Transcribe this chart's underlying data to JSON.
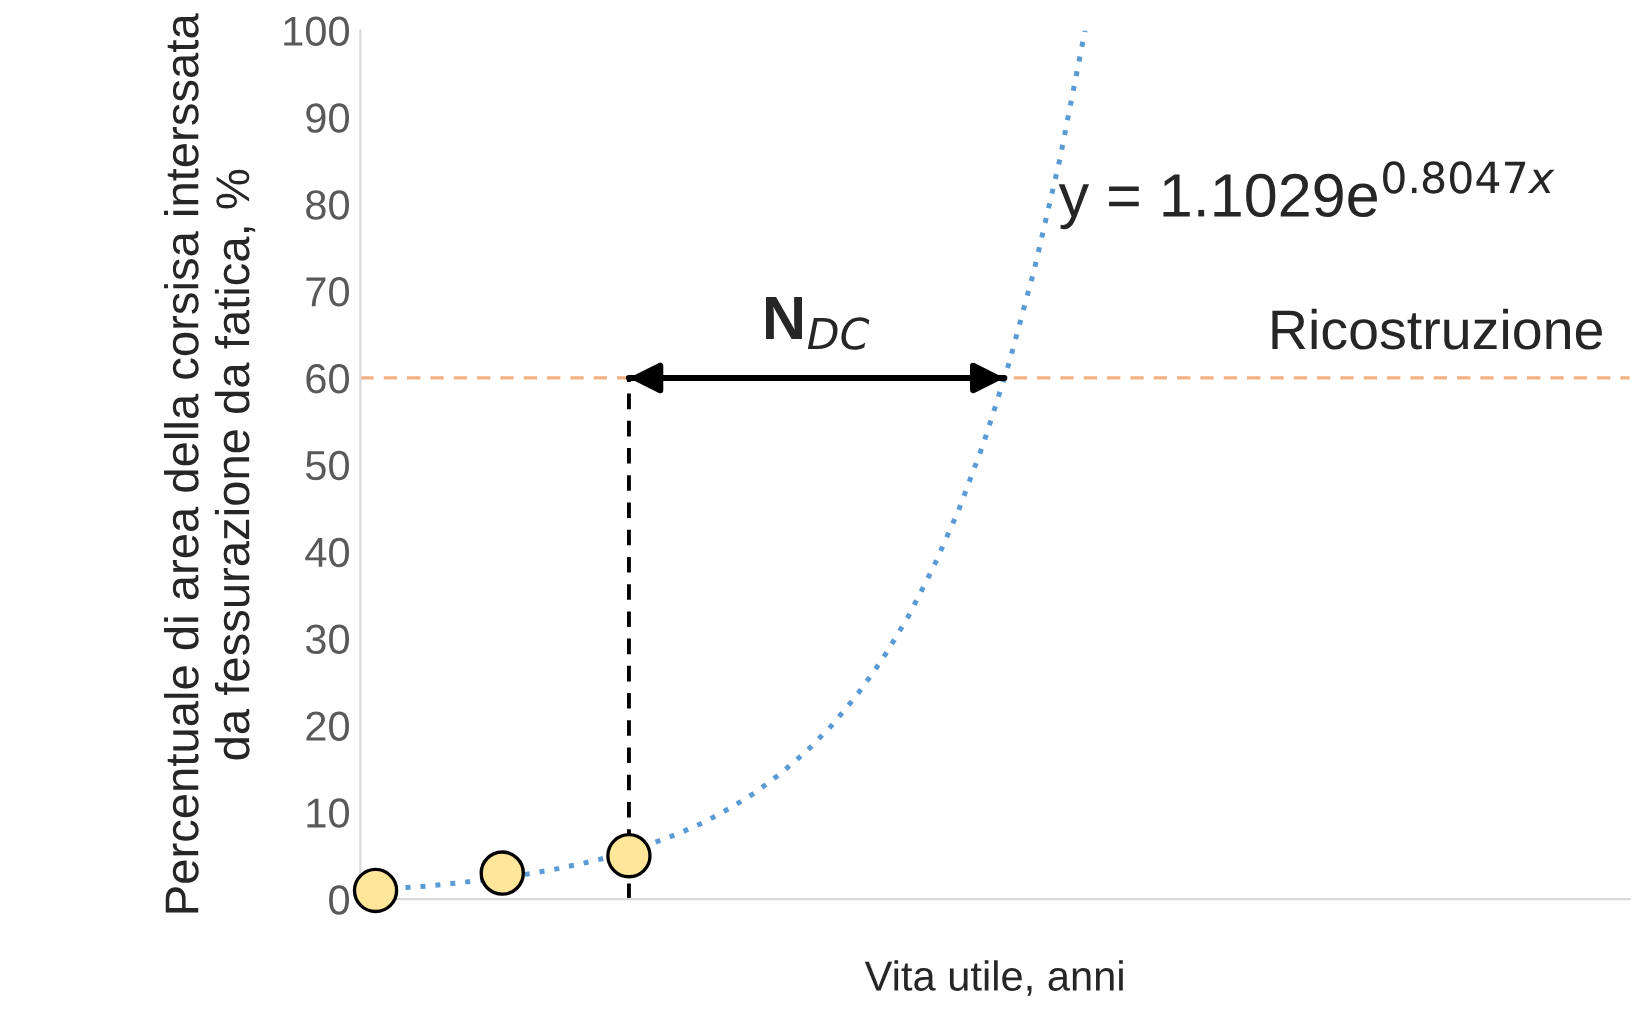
{
  "chart_data": {
    "type": "line",
    "xlabel": "Vita utile, anni",
    "ylabel": "Percentuale di area della corsisa interssata da fessurazione da fatica, %",
    "categories": [
      null,
      null,
      null,
      null,
      null,
      null,
      null,
      null,
      null,
      null,
      null,
      null,
      null,
      null,
      null,
      null,
      null,
      null,
      null,
      null,
      null,
      null,
      null,
      null,
      null,
      null,
      null,
      null,
      null,
      null,
      null,
      null,
      null,
      null,
      null,
      null,
      null,
      null,
      null,
      null,
      null,
      null,
      null,
      null,
      null,
      null,
      null,
      null,
      null,
      null
    ],
    "ylim": [
      0,
      100
    ],
    "yticks": [
      0,
      10,
      20,
      30,
      40,
      50,
      60,
      70,
      80,
      90,
      100
    ],
    "tick_labels": "y",
    "grid": false,
    "series": [
      {
        "color": "#5b9bd5",
        "line_style": "dotted",
        "values": [
          1.1,
          1.3,
          1.5,
          1.8,
          2.1,
          2.5,
          2.9,
          3.4,
          4.0,
          4.7,
          5.5,
          6.5,
          7.6,
          8.9,
          10.5,
          12.3,
          14.5,
          17.0,
          20.0,
          23.5,
          27.6,
          32.4,
          38.1,
          44.7,
          52.5,
          61.7,
          72.5,
          85.1,
          100,
          null,
          null,
          null,
          null,
          null,
          null,
          null,
          null,
          null,
          null,
          null,
          null,
          null,
          null,
          null,
          null,
          null,
          null,
          null,
          null,
          null
        ]
      },
      {
        "type": "scatter",
        "color": "#ffe699",
        "marker": "circle",
        "values": [
          1,
          null,
          null,
          null,
          null,
          3,
          null,
          null,
          null,
          null,
          5,
          null,
          null,
          null,
          null,
          null,
          null,
          null,
          null,
          null,
          null,
          null,
          null,
          null,
          null,
          null,
          null,
          null,
          null,
          null,
          null,
          null,
          null,
          null,
          null,
          null,
          null,
          null,
          null,
          null,
          null,
          null,
          null,
          null,
          null,
          null,
          null,
          null,
          null,
          null
        ]
      }
    ],
    "ref_lines": [
      {
        "axis": "y",
        "value": 60,
        "label": "Ricostruzione",
        "color": "#f4b183",
        "line_style": "dashed"
      }
    ],
    "annotations": [
      "N$_{DC}$",
      "y = 1.1029e$^{0.8047x}$"
    ]
  }
}
